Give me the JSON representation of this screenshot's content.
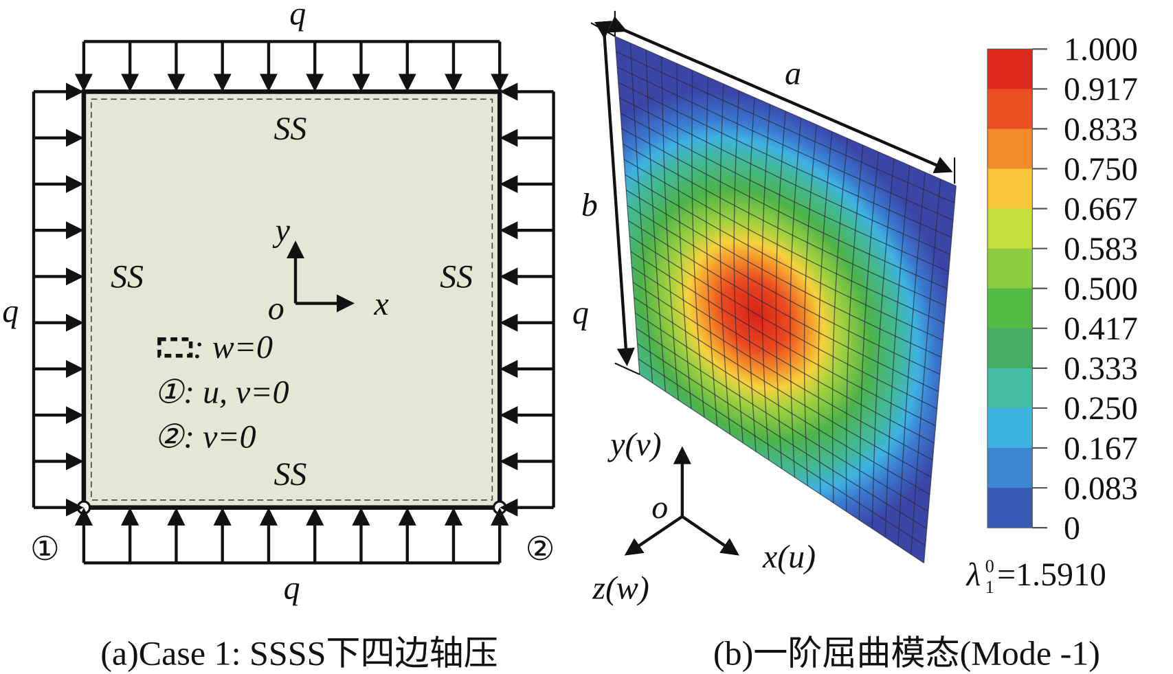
{
  "panel_a": {
    "load_top": "q",
    "load_bottom": "q",
    "load_left": "q",
    "edge_top": "SS",
    "edge_bottom": "SS",
    "edge_left": "SS",
    "edge_right": "SS",
    "axis_y": "y",
    "axis_x": "x",
    "origin": "o",
    "legend": [
      ": w=0",
      "①: u, v=0",
      "②: v=0"
    ],
    "node_1": "①",
    "node_2": "②",
    "caption": "(a)Case 1: SSSS下四边轴压"
  },
  "panel_b": {
    "dim_a": "a",
    "dim_b": "b",
    "load": "q",
    "axis_y": "y(v)",
    "axis_x": "x(u)",
    "axis_z": "z(w)",
    "origin": "o",
    "colorbar_labels": [
      "1.000",
      "0.917",
      "0.833",
      "0.750",
      "0.667",
      "0.583",
      "0.500",
      "0.417",
      "0.333",
      "0.250",
      "0.167",
      "0.083",
      "0"
    ],
    "eigen_symbol": "λ",
    "eigen_sub": "1",
    "eigen_sup": "0",
    "eigen_value": "=1.5910",
    "caption": "(b)一阶屈曲模态(Mode -1)"
  }
}
